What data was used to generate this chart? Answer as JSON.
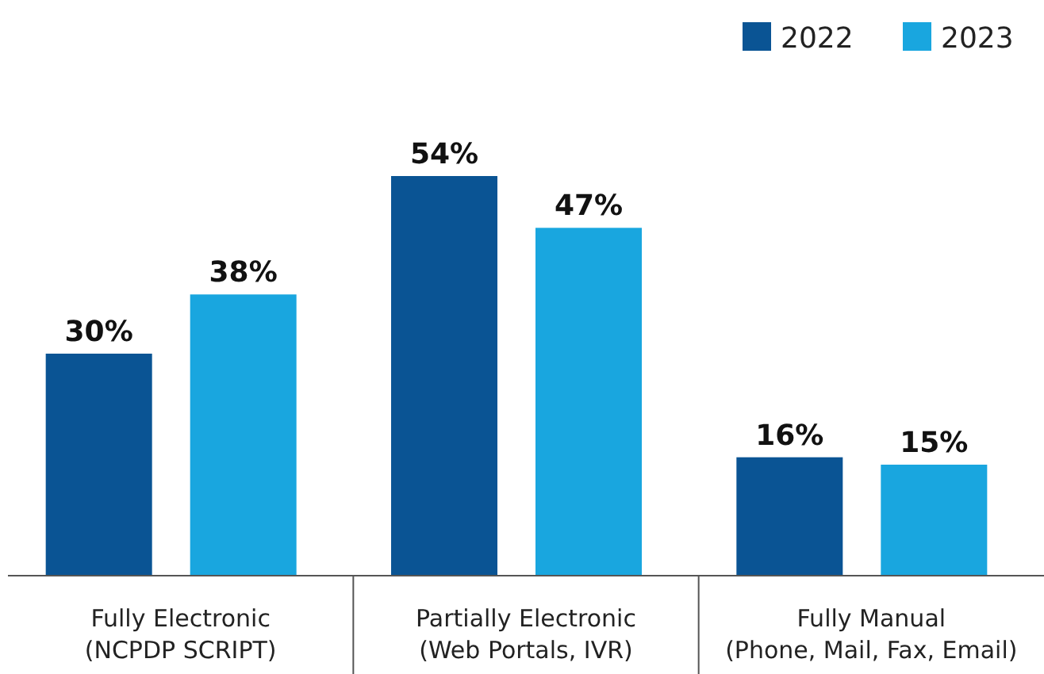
{
  "chart_data": {
    "type": "bar",
    "categories": [
      "Fully Electronic\n(NCPDP SCRIPT)",
      "Partially Electronic\n(Web Portals, IVR)",
      "Fully Manual\n(Phone, Mail, Fax, Email)"
    ],
    "series": [
      {
        "name": "2022",
        "color": "#0a5494",
        "values": [
          30,
          54,
          16
        ],
        "value_labels": [
          "30%",
          "54%",
          "16%"
        ]
      },
      {
        "name": "2023",
        "color": "#19a6df",
        "values": [
          38,
          47,
          15
        ],
        "value_labels": [
          "38%",
          "47%",
          "15%"
        ]
      }
    ],
    "legend": "top right",
    "grid": false
  }
}
